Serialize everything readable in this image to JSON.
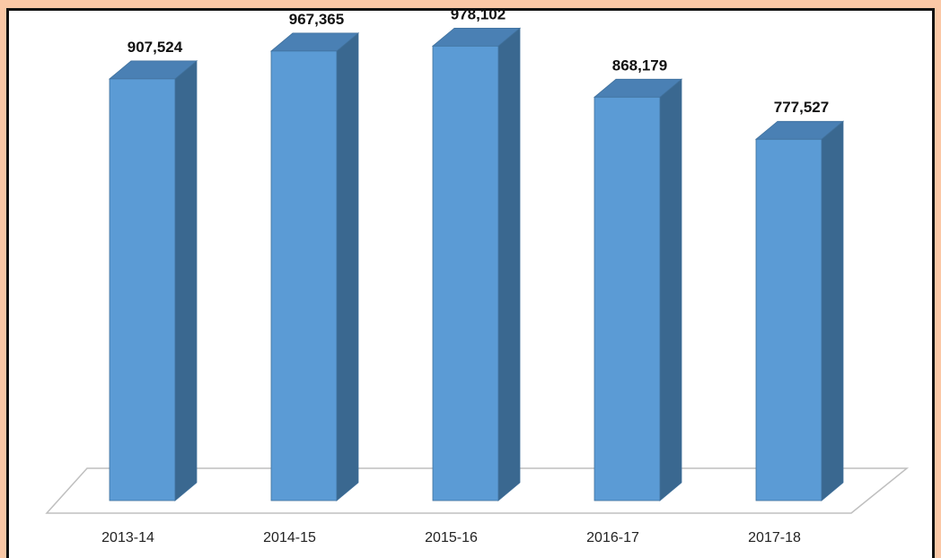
{
  "chart_data": {
    "type": "bar",
    "style": "3d-column",
    "categories": [
      "2013-14",
      "2014-15",
      "2015-16",
      "2016-17",
      "2017-18"
    ],
    "values": [
      907524,
      967365,
      978102,
      868179,
      777527
    ],
    "value_labels": [
      "907,524",
      "967,365",
      "978,102",
      "868,179",
      "777,527"
    ],
    "ylim": [
      0,
      1000000
    ],
    "grid": false,
    "legend": "none",
    "colors": {
      "bar_front": "#5b9bd5",
      "bar_side": "#3a6890",
      "bar_top": "#4a80b4",
      "bar_edge": "#41719c",
      "floor_line": "#bfbfbf",
      "frame_outer": "#fbc8a6",
      "frame_border": "#111111"
    }
  }
}
